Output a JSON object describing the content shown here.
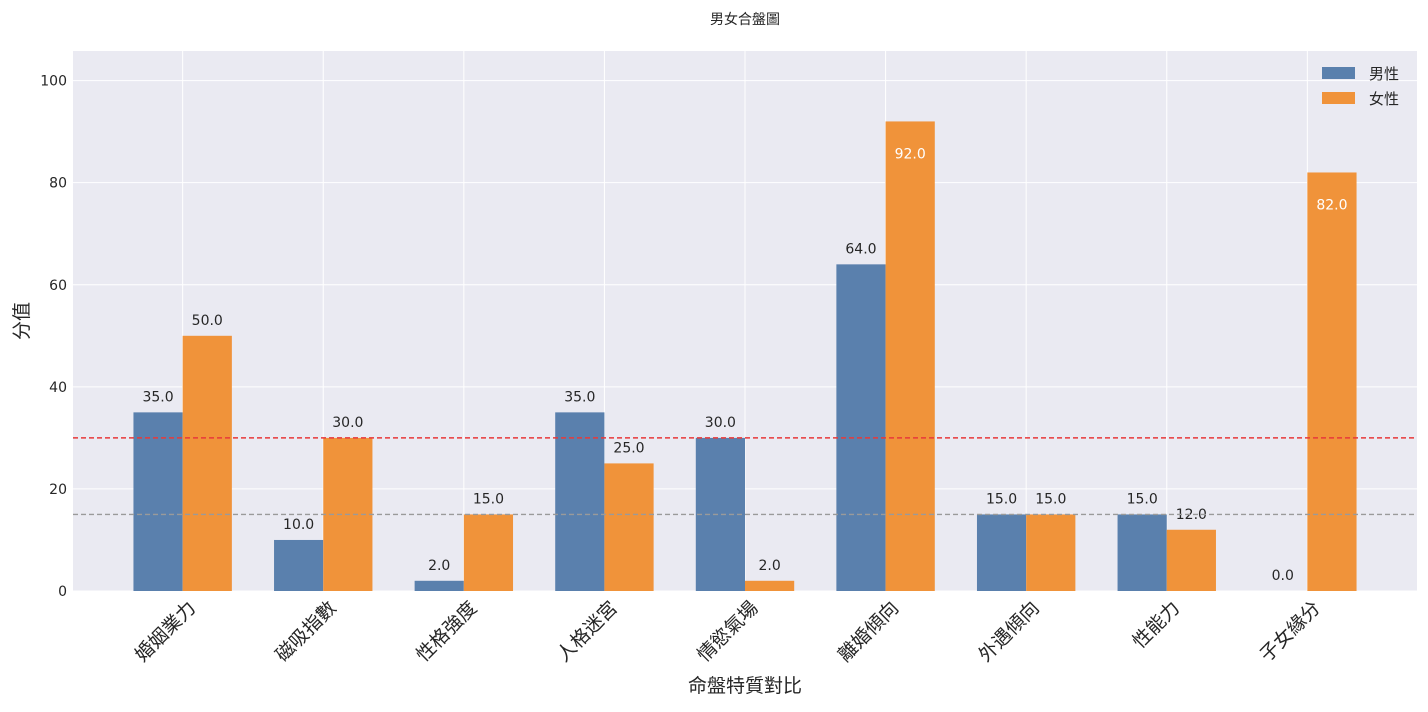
{
  "chart_data": {
    "type": "bar",
    "title": "男女合盤圖",
    "xlabel": "命盤特質對比",
    "ylabel": "分值",
    "categories": [
      "婚姻業力",
      "磁吸指數",
      "性格強度",
      "人格迷宮",
      "情慾氣場",
      "離婚傾向",
      "外遇傾向",
      "性能力",
      "子女緣分"
    ],
    "series": [
      {
        "name": "男性",
        "color": "#5a80ad",
        "values": [
          35.0,
          10.0,
          2.0,
          35.0,
          30.0,
          64.0,
          15.0,
          15.0,
          0.0
        ]
      },
      {
        "name": "女性",
        "color": "#f0933a",
        "values": [
          50.0,
          30.0,
          15.0,
          25.0,
          2.0,
          92.0,
          15.0,
          12.0,
          82.0
        ]
      }
    ],
    "reference_lines": [
      {
        "y": 30,
        "color": "#e8393a",
        "style": "dashed"
      },
      {
        "y": 15,
        "color": "#9a9a9a",
        "style": "dashed"
      }
    ],
    "ylim": [
      0,
      105.8
    ],
    "yticks": [
      0,
      20,
      40,
      60,
      80,
      100
    ],
    "grid": true,
    "legend": "top-right",
    "background": "#eaeaf2"
  }
}
